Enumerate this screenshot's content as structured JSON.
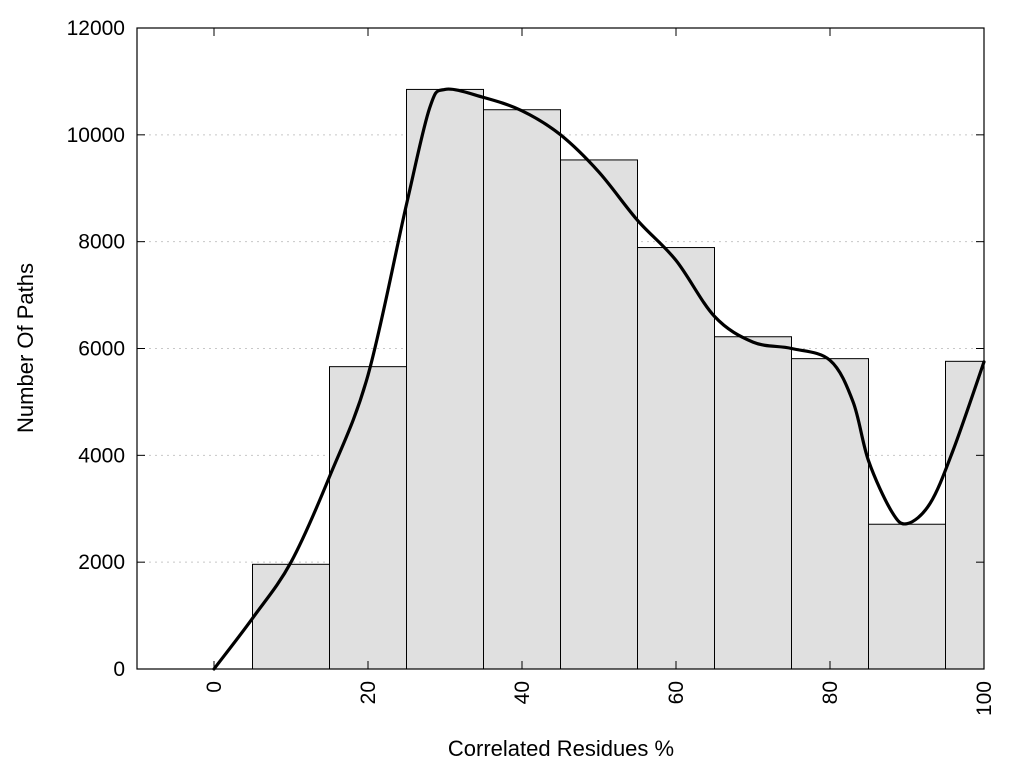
{
  "chart_data": {
    "type": "bar",
    "xlabel": "Correlated Residues %",
    "ylabel": "Number Of Paths",
    "xlim": [
      -10,
      100
    ],
    "ylim": [
      0,
      12000
    ],
    "x_ticks": [
      0,
      20,
      40,
      60,
      80,
      100
    ],
    "y_ticks": [
      0,
      2000,
      4000,
      6000,
      8000,
      10000,
      12000
    ],
    "bar_width": 10,
    "grid": "horizontal dotted",
    "bar_color": "#e0e0e0",
    "bars": [
      {
        "x": 10,
        "value": 1960
      },
      {
        "x": 20,
        "value": 5660
      },
      {
        "x": 30,
        "value": 10850
      },
      {
        "x": 40,
        "value": 10470
      },
      {
        "x": 50,
        "value": 9530
      },
      {
        "x": 60,
        "value": 7890
      },
      {
        "x": 70,
        "value": 6220
      },
      {
        "x": 80,
        "value": 5810
      },
      {
        "x": 90,
        "value": 2710
      },
      {
        "x": 100,
        "value": 5760
      }
    ],
    "curve": [
      [
        0,
        0
      ],
      [
        5,
        950
      ],
      [
        10,
        2000
      ],
      [
        15,
        3600
      ],
      [
        20,
        5500
      ],
      [
        25,
        8700
      ],
      [
        28,
        10500
      ],
      [
        30,
        10850
      ],
      [
        35,
        10700
      ],
      [
        40,
        10450
      ],
      [
        45,
        10000
      ],
      [
        50,
        9300
      ],
      [
        55,
        8400
      ],
      [
        60,
        7650
      ],
      [
        65,
        6600
      ],
      [
        70,
        6120
      ],
      [
        75,
        6000
      ],
      [
        80,
        5780
      ],
      [
        83,
        5000
      ],
      [
        85,
        3900
      ],
      [
        88,
        2950
      ],
      [
        90,
        2720
      ],
      [
        93,
        3100
      ],
      [
        96,
        4100
      ],
      [
        100,
        5750
      ]
    ]
  }
}
